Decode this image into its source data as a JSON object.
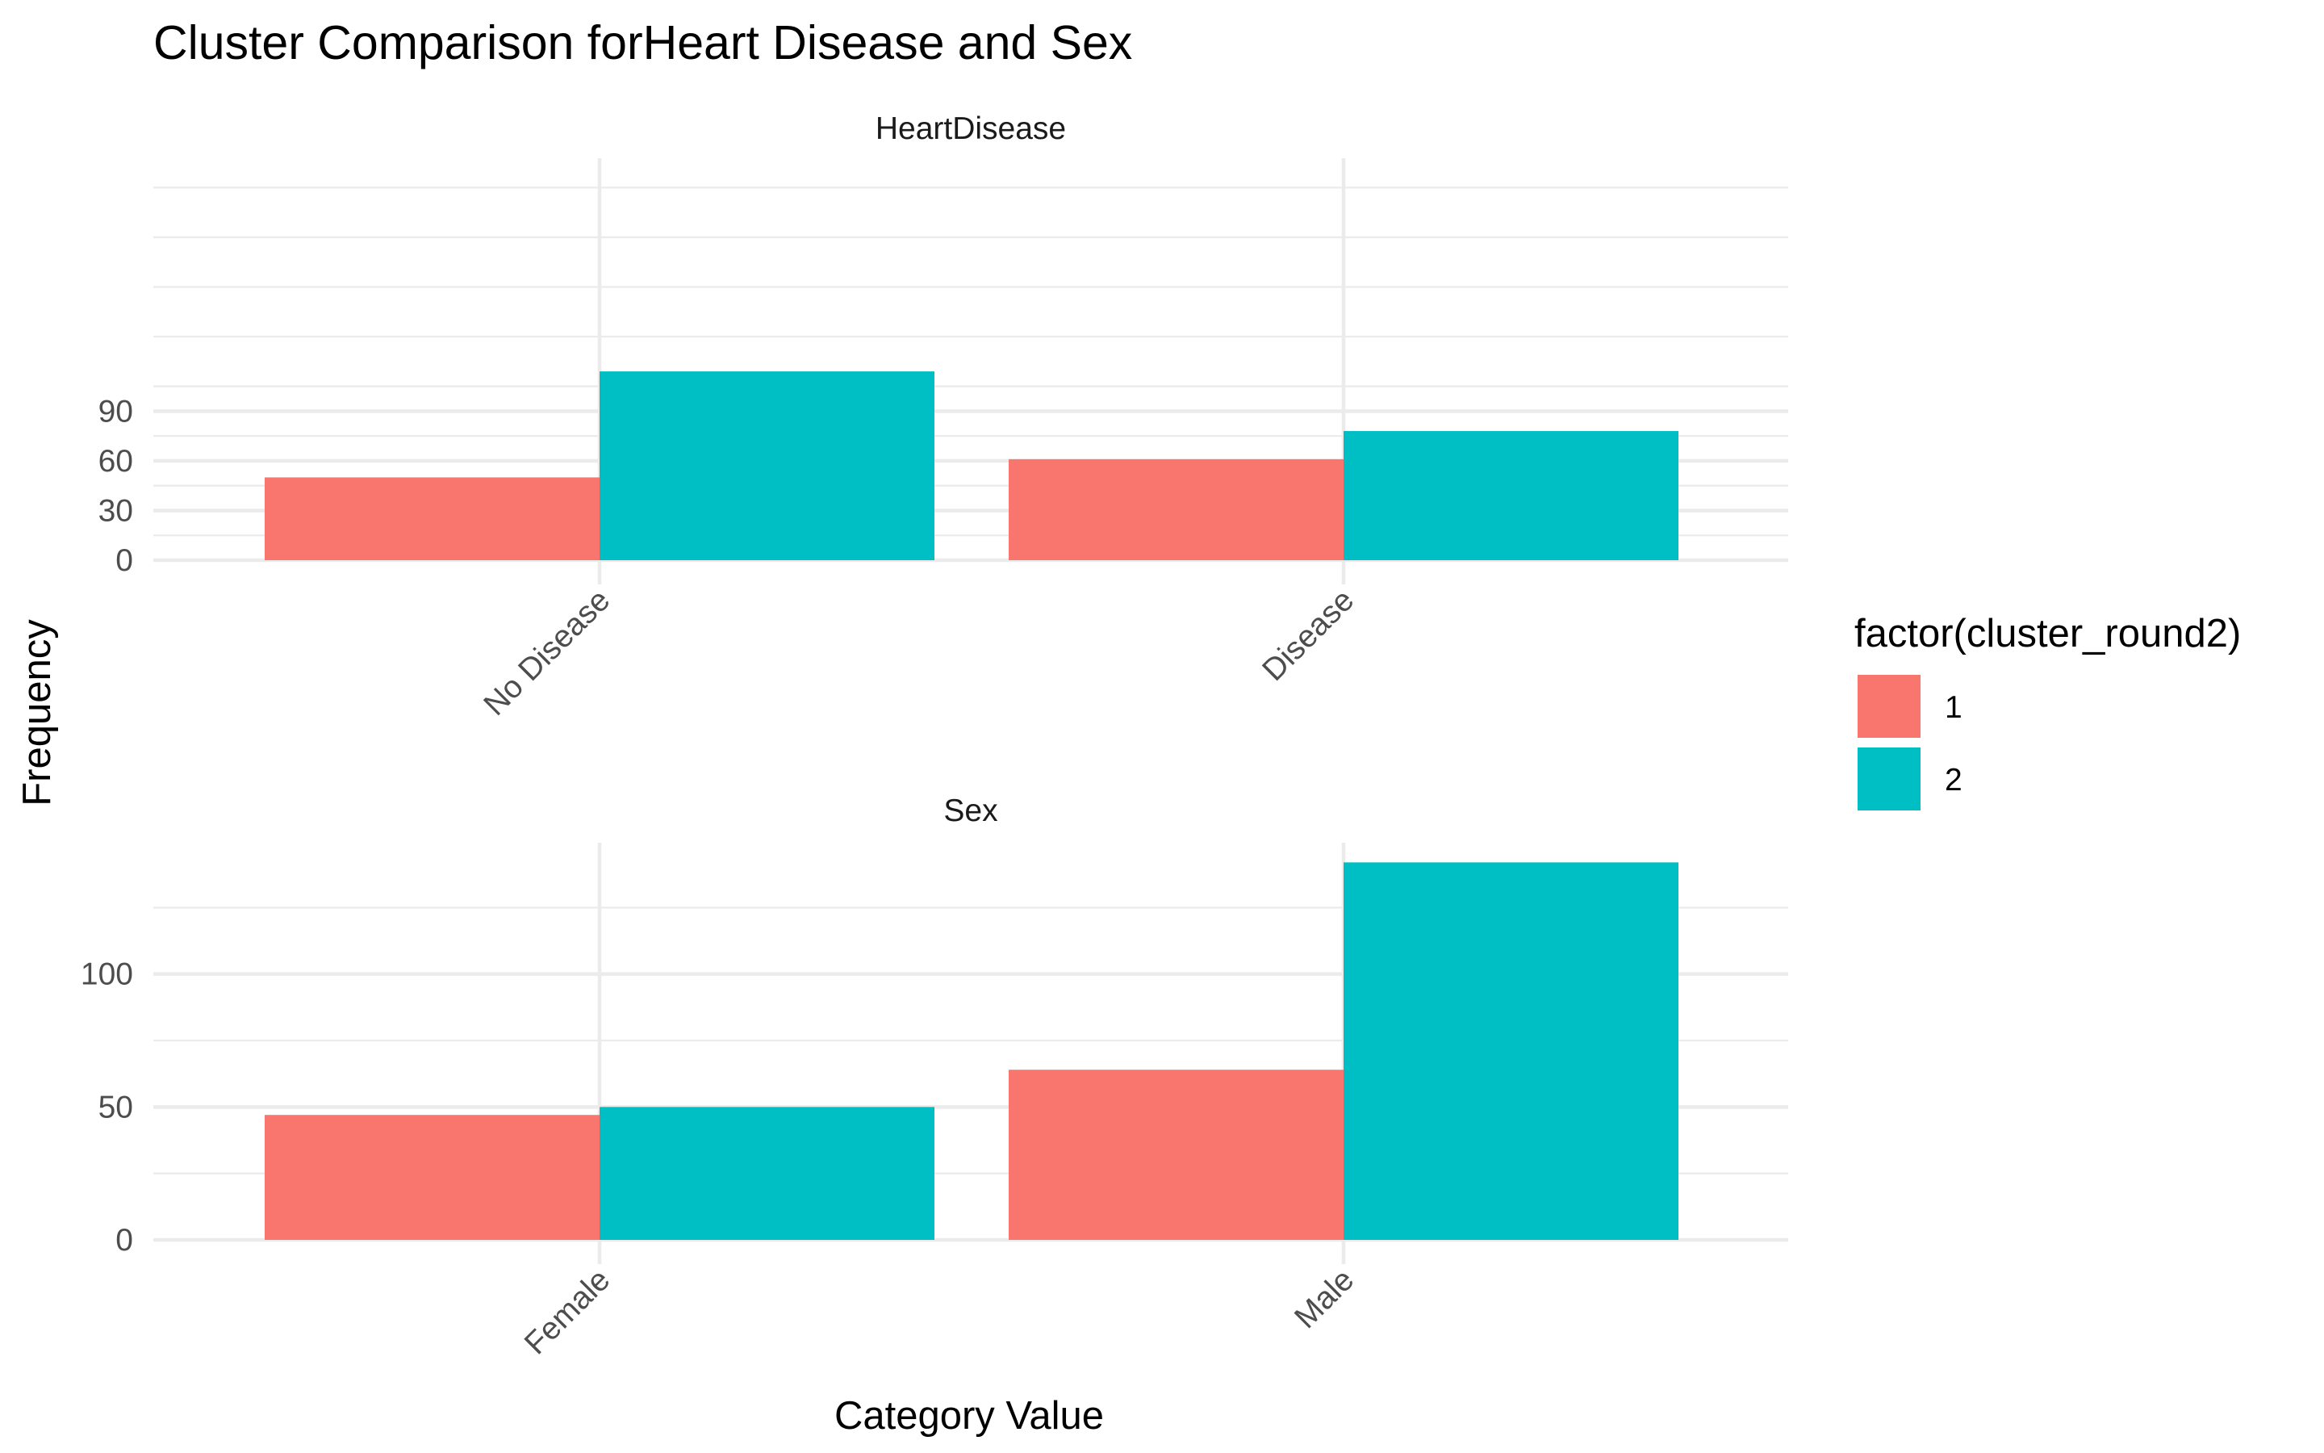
{
  "chart_data": {
    "type": "bar",
    "title": "Cluster Comparison forHeart Disease and Sex",
    "xlabel": "Category Value",
    "ylabel": "Frequency",
    "legend": {
      "title": "factor(cluster_round2)",
      "position": "right",
      "entries": [
        "1",
        "2"
      ]
    },
    "colors": {
      "1": "#F8766D",
      "2": "#00BFC4"
    },
    "grid": true,
    "panels": [
      {
        "strip": "HeartDisease",
        "categories": [
          "No Disease",
          "Disease"
        ],
        "series": [
          {
            "name": "1",
            "values": [
              50,
              61
            ]
          },
          {
            "name": "2",
            "values": [
              114,
              78
            ]
          }
        ],
        "ylim": [
          0,
          120
        ],
        "yticks": [
          0,
          30,
          60,
          90
        ]
      },
      {
        "strip": "Sex",
        "categories": [
          "Female",
          "Male"
        ],
        "series": [
          {
            "name": "1",
            "values": [
              47,
              64
            ]
          },
          {
            "name": "2",
            "values": [
              50,
              142
            ]
          }
        ],
        "ylim": [
          0,
          148
        ],
        "yticks": [
          0,
          50,
          100
        ]
      }
    ]
  }
}
